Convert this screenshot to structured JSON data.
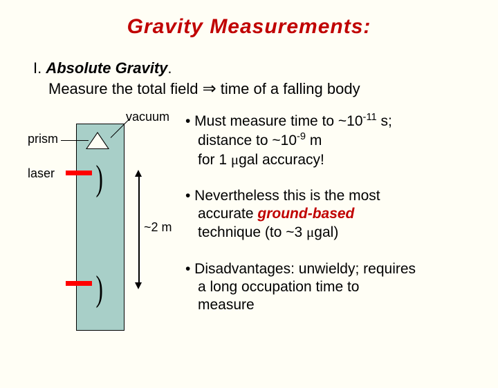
{
  "title": "Gravity  Measurements:",
  "section": {
    "prefix": "I. ",
    "heading": "Absolute Gravity",
    "period": ".",
    "sub_before": "Measure the total field ",
    "sub_after": " time of a falling body"
  },
  "diagram": {
    "vacuum": "vacuum",
    "prism": "prism",
    "laser": "laser",
    "height": "~2 m",
    "colors": {
      "chamber_fill": "#a8cfc8",
      "laser_color": "#ff0000",
      "background": "#fffef5"
    }
  },
  "bullets": {
    "b1": {
      "line1_a": "• Must measure time to ~10",
      "line1_exp": "-11",
      "line1_b": " s;",
      "line2_a": "distance to ~10",
      "line2_exp": "-9",
      "line2_b": " m",
      "line3_a": "for 1 ",
      "line3_b": "gal accuracy!"
    },
    "b2": {
      "line1": "• Nevertheless this is the most",
      "line2_a": "accurate ",
      "line2_red": "ground-based",
      "line3_a": "technique (to ~3 ",
      "line3_b": "gal)"
    },
    "b3": {
      "line1": "• Disadvantages: unwieldy; requires",
      "line2": "a long occupation time to",
      "line3": "measure"
    }
  },
  "colors": {
    "title": "#c00000",
    "text": "#000000"
  }
}
